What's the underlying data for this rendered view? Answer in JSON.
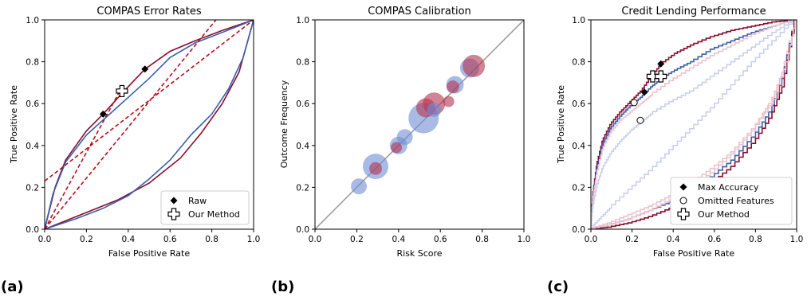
{
  "colors": {
    "red": "#8b0a2a",
    "blue": "#3b5fb0",
    "red_dashed": "#b8101c",
    "diag": "#999999",
    "blue_bubble": "#6f8ed4",
    "red_bubble": "#b3324e",
    "light_blue": "#c9cfee",
    "light_red": "#ecc3cd"
  },
  "panel_labels": [
    "(a)",
    "(b)",
    "(c)"
  ],
  "chart_data": [
    {
      "type": "line",
      "title": "COMPAS Error Rates",
      "xlabel": "False Positive Rate",
      "ylabel": "True Positive Rate",
      "xlim": [
        0,
        1
      ],
      "ylim": [
        0,
        1
      ],
      "xticks": [
        "0.0",
        "0.2",
        "0.4",
        "0.6",
        "0.8",
        "1.0"
      ],
      "yticks": [
        "0.0",
        "0.2",
        "0.4",
        "0.6",
        "0.8",
        "1.0"
      ],
      "grid": false,
      "legend": {
        "placement": "bottom-right",
        "entries": [
          {
            "label": "Raw",
            "marker": "diamond"
          },
          {
            "label": "Our Method",
            "marker": "plus"
          }
        ]
      },
      "series": [
        {
          "color": "red",
          "style": "solid",
          "x": [
            0,
            0.05,
            0.1,
            0.2,
            0.28,
            0.38,
            0.48,
            0.6,
            0.72,
            0.85,
            1
          ],
          "y": [
            0,
            0.2,
            0.33,
            0.47,
            0.55,
            0.66,
            0.765,
            0.85,
            0.9,
            0.95,
            1
          ]
        },
        {
          "color": "blue",
          "style": "solid",
          "x": [
            0,
            0.04,
            0.1,
            0.2,
            0.3,
            0.4,
            0.5,
            0.6,
            0.72,
            0.85,
            1
          ],
          "y": [
            0,
            0.17,
            0.32,
            0.45,
            0.54,
            0.63,
            0.72,
            0.82,
            0.89,
            0.94,
            1
          ]
        },
        {
          "color": "red",
          "style": "solid",
          "x": [
            0,
            0.2,
            0.35,
            0.5,
            0.65,
            0.75,
            0.85,
            0.93,
            1
          ],
          "y": [
            0,
            0.08,
            0.14,
            0.22,
            0.34,
            0.46,
            0.6,
            0.75,
            1
          ]
        },
        {
          "color": "blue",
          "style": "solid",
          "x": [
            0,
            0.15,
            0.28,
            0.4,
            0.5,
            0.6,
            0.7,
            0.8,
            0.88,
            0.95,
            1
          ],
          "y": [
            0,
            0.05,
            0.1,
            0.16,
            0.24,
            0.33,
            0.45,
            0.55,
            0.67,
            0.82,
            1
          ]
        },
        {
          "color": "red_dashed",
          "style": "dashed",
          "x": [
            0,
            1
          ],
          "y": [
            0.23,
            1
          ]
        },
        {
          "color": "red_dashed",
          "style": "dashed",
          "x": [
            0,
            0.82
          ],
          "y": [
            0,
            1
          ]
        },
        {
          "color": "red_dashed",
          "style": "dashed",
          "x": [
            0,
            0.36
          ],
          "y": [
            0,
            0.66
          ]
        }
      ],
      "markers": [
        {
          "type": "diamond",
          "x": 0.28,
          "y": 0.55
        },
        {
          "type": "diamond",
          "x": 0.48,
          "y": 0.765
        },
        {
          "type": "plus",
          "x": 0.37,
          "y": 0.66
        }
      ]
    },
    {
      "type": "scatter",
      "title": "COMPAS Calibration",
      "xlabel": "Risk Score",
      "ylabel": "Outcome Frequency",
      "xlim": [
        0,
        1
      ],
      "ylim": [
        0,
        1
      ],
      "xticks": [
        "0.0",
        "0.2",
        "0.4",
        "0.6",
        "0.8",
        "1.0"
      ],
      "yticks": [
        "0.0",
        "0.2",
        "0.4",
        "0.6",
        "0.8",
        "1.0"
      ],
      "grid": false,
      "diagonal": true,
      "points": [
        {
          "x": 0.21,
          "y": 0.205,
          "size": 10,
          "color": "blue_bubble"
        },
        {
          "x": 0.29,
          "y": 0.3,
          "size": 16,
          "color": "blue_bubble"
        },
        {
          "x": 0.29,
          "y": 0.29,
          "size": 8,
          "color": "red_bubble"
        },
        {
          "x": 0.4,
          "y": 0.4,
          "size": 11,
          "color": "blue_bubble"
        },
        {
          "x": 0.43,
          "y": 0.44,
          "size": 10,
          "color": "blue_bubble"
        },
        {
          "x": 0.39,
          "y": 0.39,
          "size": 7,
          "color": "red_bubble"
        },
        {
          "x": 0.52,
          "y": 0.53,
          "size": 19,
          "color": "blue_bubble"
        },
        {
          "x": 0.53,
          "y": 0.58,
          "size": 12,
          "color": "red_bubble"
        },
        {
          "x": 0.57,
          "y": 0.6,
          "size": 14,
          "color": "red_bubble"
        },
        {
          "x": 0.57,
          "y": 0.57,
          "size": 9,
          "color": "blue_bubble"
        },
        {
          "x": 0.64,
          "y": 0.61,
          "size": 7,
          "color": "red_bubble"
        },
        {
          "x": 0.67,
          "y": 0.69,
          "size": 11,
          "color": "blue_bubble"
        },
        {
          "x": 0.66,
          "y": 0.68,
          "size": 8,
          "color": "red_bubble"
        },
        {
          "x": 0.74,
          "y": 0.77,
          "size": 12,
          "color": "blue_bubble"
        },
        {
          "x": 0.76,
          "y": 0.78,
          "size": 14,
          "color": "red_bubble"
        }
      ]
    },
    {
      "type": "line",
      "title": "Credit Lending Performance",
      "xlabel": "False Positive Rate",
      "ylabel": "True Positive Rate",
      "xlim": [
        0,
        1
      ],
      "ylim": [
        0,
        1
      ],
      "xticks": [
        "0.0",
        "0.2",
        "0.4",
        "0.6",
        "0.8",
        "1.0"
      ],
      "yticks": [
        "0.0",
        "0.2",
        "0.4",
        "0.6",
        "0.8",
        "1.0"
      ],
      "grid": false,
      "legend": {
        "placement": "bottom-right",
        "entries": [
          {
            "label": "Max Accuracy",
            "marker": "diamond"
          },
          {
            "label": "Omitted Features",
            "marker": "circle"
          },
          {
            "label": "Our Method",
            "marker": "plus"
          }
        ]
      },
      "series": [
        {
          "color": "red",
          "style": "step",
          "x": [
            0,
            0.01,
            0.03,
            0.06,
            0.1,
            0.15,
            0.2,
            0.25,
            0.3,
            0.35,
            0.42,
            0.5,
            0.6,
            0.7,
            0.8,
            0.9,
            1
          ],
          "y": [
            0,
            0.15,
            0.3,
            0.42,
            0.5,
            0.56,
            0.61,
            0.66,
            0.73,
            0.79,
            0.84,
            0.88,
            0.92,
            0.95,
            0.97,
            0.99,
            1
          ]
        },
        {
          "color": "blue",
          "style": "step",
          "x": [
            0,
            0.01,
            0.03,
            0.06,
            0.1,
            0.15,
            0.2,
            0.25,
            0.3,
            0.35,
            0.42,
            0.5,
            0.6,
            0.7,
            0.8,
            0.9,
            1
          ],
          "y": [
            0,
            0.14,
            0.28,
            0.4,
            0.48,
            0.54,
            0.59,
            0.63,
            0.68,
            0.72,
            0.76,
            0.8,
            0.86,
            0.9,
            0.94,
            0.97,
            1
          ]
        },
        {
          "color": "light_red",
          "style": "step",
          "x": [
            0,
            0.01,
            0.03,
            0.06,
            0.1,
            0.15,
            0.2,
            0.25,
            0.3,
            0.4,
            0.5,
            0.6,
            0.7,
            0.8,
            0.9,
            1
          ],
          "y": [
            0,
            0.13,
            0.26,
            0.38,
            0.46,
            0.52,
            0.56,
            0.6,
            0.64,
            0.71,
            0.77,
            0.83,
            0.88,
            0.93,
            0.97,
            1
          ]
        },
        {
          "color": "light_blue",
          "style": "step",
          "x": [
            0,
            0.01,
            0.03,
            0.06,
            0.1,
            0.15,
            0.2,
            0.25,
            0.3,
            0.4,
            0.5,
            0.6,
            0.7,
            0.8,
            0.9,
            1
          ],
          "y": [
            0,
            0.1,
            0.2,
            0.29,
            0.36,
            0.42,
            0.47,
            0.51,
            0.55,
            0.61,
            0.66,
            0.73,
            0.8,
            0.87,
            0.94,
            1
          ]
        },
        {
          "color": "light_blue",
          "style": "step",
          "x": [
            0,
            0.05,
            0.1,
            0.2,
            0.3,
            0.4,
            0.5,
            0.6,
            0.7,
            0.8,
            0.9,
            1
          ],
          "y": [
            0,
            0.05,
            0.1,
            0.19,
            0.28,
            0.38,
            0.48,
            0.58,
            0.69,
            0.8,
            0.9,
            1
          ]
        },
        {
          "color": "light_red",
          "style": "step",
          "x": [
            0,
            0.1,
            0.2,
            0.3,
            0.4,
            0.5,
            0.6,
            0.7,
            0.8,
            0.88,
            0.94,
            1
          ],
          "y": [
            0,
            0.03,
            0.07,
            0.11,
            0.16,
            0.22,
            0.29,
            0.37,
            0.48,
            0.6,
            0.75,
            1
          ]
        },
        {
          "color": "blue",
          "style": "step",
          "x": [
            0,
            0.1,
            0.2,
            0.3,
            0.4,
            0.5,
            0.6,
            0.7,
            0.8,
            0.88,
            0.94,
            1
          ],
          "y": [
            0,
            0.02,
            0.05,
            0.09,
            0.13,
            0.18,
            0.25,
            0.33,
            0.44,
            0.56,
            0.72,
            1
          ]
        },
        {
          "color": "red",
          "style": "step",
          "x": [
            0,
            0.1,
            0.2,
            0.3,
            0.4,
            0.5,
            0.6,
            0.7,
            0.8,
            0.88,
            0.94,
            1
          ],
          "y": [
            0,
            0.01,
            0.03,
            0.06,
            0.1,
            0.15,
            0.22,
            0.3,
            0.41,
            0.53,
            0.68,
            1
          ]
        },
        {
          "color": "light_red",
          "style": "step",
          "x": [
            0,
            0.1,
            0.2,
            0.3,
            0.4,
            0.5,
            0.6,
            0.7,
            0.8,
            0.9,
            0.96,
            1
          ],
          "y": [
            0,
            0.02,
            0.05,
            0.09,
            0.14,
            0.2,
            0.27,
            0.36,
            0.47,
            0.62,
            0.8,
            1
          ]
        }
      ],
      "markers": [
        {
          "type": "diamond",
          "x": 0.34,
          "y": 0.79
        },
        {
          "type": "diamond",
          "x": 0.26,
          "y": 0.655
        },
        {
          "type": "circle",
          "x": 0.21,
          "y": 0.605
        },
        {
          "type": "circle",
          "x": 0.24,
          "y": 0.52
        },
        {
          "type": "plus",
          "x": 0.3,
          "y": 0.73
        },
        {
          "type": "plus",
          "x": 0.34,
          "y": 0.73
        }
      ]
    }
  ]
}
